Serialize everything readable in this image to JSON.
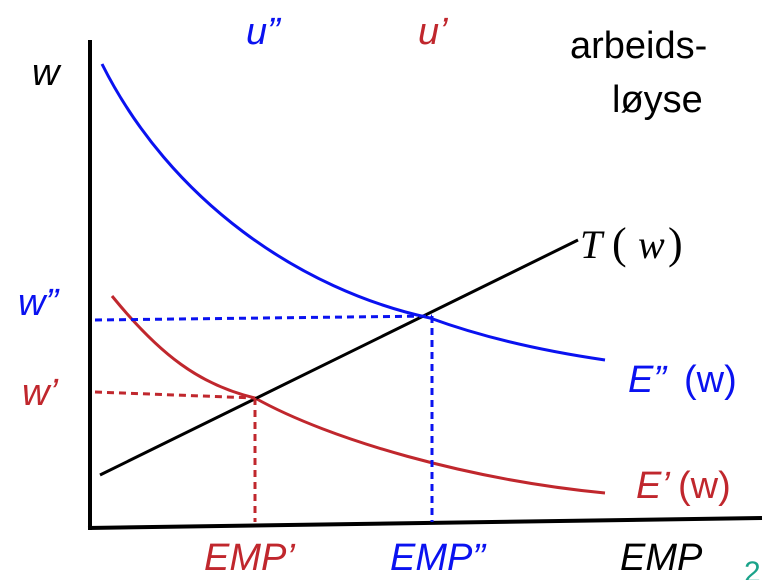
{
  "colors": {
    "blue": "#0a12f0",
    "red": "#c0272d",
    "black": "#000000",
    "teal": "#1aa38a"
  },
  "labels": {
    "u_double": "u”",
    "u_single": "u’",
    "unemployment_line1": "arbeids-",
    "unemployment_line2": "løyse",
    "y_axis": "w",
    "w_double": "w”",
    "w_single": "w’",
    "T_letter": "T",
    "T_paren_open": "(",
    "T_arg": "w",
    "T_paren_close": ")",
    "E_double_prefix": "E”",
    "E_double_args": "(w)",
    "E_single_prefix": "E’",
    "E_single_args": "(w)",
    "emp_single": "EMP’",
    "emp_double": "EMP”",
    "x_axis": "EMP",
    "page_fragment": "2"
  }
}
